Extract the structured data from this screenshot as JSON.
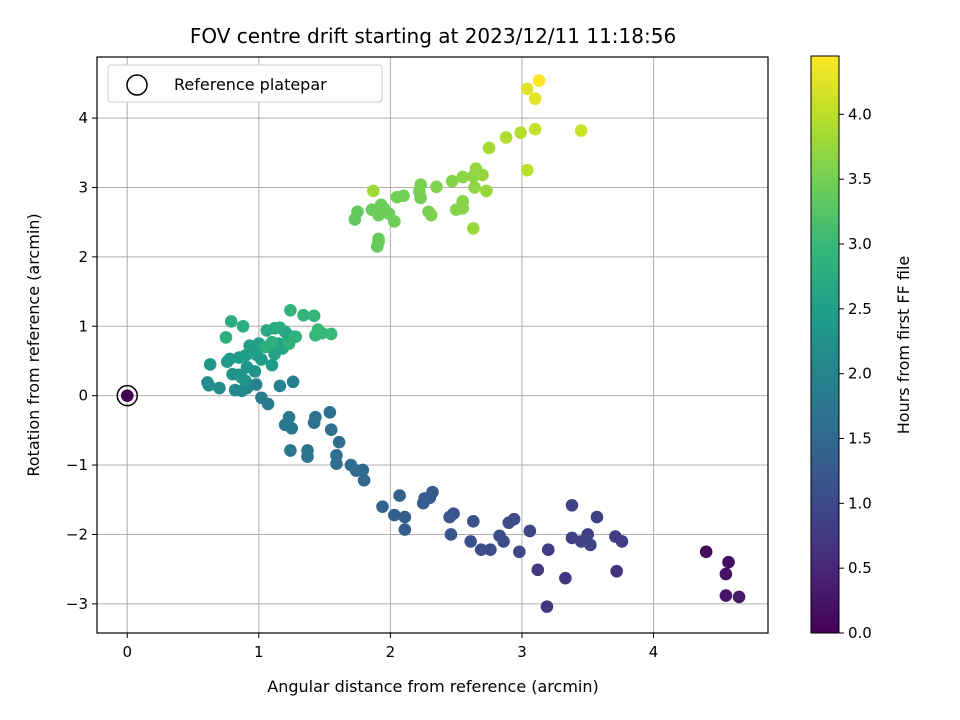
{
  "chart_data": {
    "type": "scatter",
    "title": "FOV centre drift starting at 2023/12/11 11:18:56",
    "xlabel": "Angular distance from reference (arcmin)",
    "ylabel": "Rotation from reference (arcmin)",
    "xlim": [
      -0.23,
      4.87
    ],
    "ylim": [
      -3.42,
      4.88
    ],
    "xticks": [
      0,
      1,
      2,
      3,
      4
    ],
    "yticks": [
      -3,
      -2,
      -1,
      0,
      1,
      2,
      3,
      4
    ],
    "grid": true,
    "legend": {
      "placement": "top-left",
      "entries": [
        "Reference platepar"
      ]
    },
    "reference_point": {
      "x": 0,
      "y": 0,
      "c": 0.0
    },
    "colorbar": {
      "label": "Hours from first FF file",
      "range": [
        0.0,
        4.45
      ],
      "ticks": [
        "0.0",
        "0.5",
        "1.0",
        "1.5",
        "2.0",
        "2.5",
        "3.0",
        "3.5",
        "4.0"
      ],
      "colormap": [
        "#440154",
        "#482878",
        "#3e4989",
        "#31688e",
        "#26828e",
        "#1f9e89",
        "#35b779",
        "#6ece58",
        "#b5de2b",
        "#fde725"
      ]
    },
    "points": [
      [
        4.4,
        -2.25,
        0.1
      ],
      [
        4.57,
        -2.4,
        0.15
      ],
      [
        4.55,
        -2.57,
        0.2
      ],
      [
        4.55,
        -2.88,
        0.25
      ],
      [
        4.65,
        -2.9,
        0.3
      ],
      [
        3.72,
        -2.53,
        0.65
      ],
      [
        3.33,
        -2.63,
        0.7
      ],
      [
        3.19,
        -3.04,
        0.72
      ],
      [
        3.12,
        -2.51,
        0.75
      ],
      [
        3.2,
        -2.22,
        0.78
      ],
      [
        3.76,
        -2.1,
        0.8
      ],
      [
        3.71,
        -2.03,
        0.82
      ],
      [
        3.57,
        -1.75,
        0.85
      ],
      [
        3.5,
        -2.0,
        0.86
      ],
      [
        3.45,
        -2.1,
        0.87
      ],
      [
        3.38,
        -2.05,
        0.88
      ],
      [
        3.38,
        -1.58,
        0.9
      ],
      [
        3.52,
        -2.15,
        0.92
      ],
      [
        3.06,
        -1.95,
        0.94
      ],
      [
        2.98,
        -2.25,
        0.96
      ],
      [
        2.94,
        -1.78,
        1.0
      ],
      [
        2.9,
        -1.83,
        1.02
      ],
      [
        2.86,
        -2.1,
        1.04
      ],
      [
        2.83,
        -2.02,
        1.06
      ],
      [
        2.76,
        -2.22,
        1.08
      ],
      [
        2.69,
        -2.22,
        1.1
      ],
      [
        2.63,
        -1.81,
        1.12
      ],
      [
        2.61,
        -2.1,
        1.14
      ],
      [
        2.48,
        -1.7,
        1.18
      ],
      [
        2.46,
        -2.0,
        1.2
      ],
      [
        2.45,
        -1.75,
        1.22
      ],
      [
        2.32,
        -1.39,
        1.24
      ],
      [
        2.3,
        -1.47,
        1.26
      ],
      [
        2.26,
        -1.48,
        1.28
      ],
      [
        2.25,
        -1.55,
        1.3
      ],
      [
        2.11,
        -1.93,
        1.32
      ],
      [
        2.11,
        -1.75,
        1.34
      ],
      [
        2.03,
        -1.72,
        1.36
      ],
      [
        2.07,
        -1.44,
        1.38
      ],
      [
        1.94,
        -1.6,
        1.4
      ],
      [
        1.8,
        -1.22,
        1.5
      ],
      [
        1.79,
        -1.07,
        1.52
      ],
      [
        1.74,
        -1.08,
        1.54
      ],
      [
        1.7,
        -1.0,
        1.56
      ],
      [
        1.59,
        -0.98,
        1.58
      ],
      [
        1.59,
        -0.86,
        1.6
      ],
      [
        1.61,
        -0.67,
        1.62
      ],
      [
        1.55,
        -0.49,
        1.64
      ],
      [
        1.54,
        -0.24,
        1.66
      ],
      [
        1.43,
        -0.31,
        1.68
      ],
      [
        1.42,
        -0.39,
        1.7
      ],
      [
        1.37,
        -0.88,
        1.72
      ],
      [
        1.37,
        -0.79,
        1.74
      ],
      [
        1.24,
        -0.79,
        1.76
      ],
      [
        1.25,
        -0.47,
        1.78
      ],
      [
        1.2,
        -0.42,
        1.8
      ],
      [
        1.23,
        -0.31,
        1.82
      ],
      [
        1.07,
        -0.12,
        1.84
      ],
      [
        1.02,
        -0.03,
        1.86
      ],
      [
        1.26,
        0.2,
        1.9
      ],
      [
        1.16,
        0.14,
        1.95
      ],
      [
        0.98,
        0.16,
        2.0
      ],
      [
        0.91,
        0.11,
        2.05
      ],
      [
        0.87,
        0.07,
        2.1
      ],
      [
        0.82,
        0.08,
        2.12
      ],
      [
        0.7,
        0.11,
        2.15
      ],
      [
        0.62,
        0.15,
        2.18
      ],
      [
        0.61,
        0.19,
        2.2
      ],
      [
        0.9,
        0.21,
        2.22
      ],
      [
        0.85,
        0.3,
        2.25
      ],
      [
        0.8,
        0.31,
        2.28
      ],
      [
        0.97,
        0.35,
        2.3
      ],
      [
        0.91,
        0.41,
        2.32
      ],
      [
        0.87,
        0.26,
        2.34
      ],
      [
        0.63,
        0.45,
        2.36
      ],
      [
        0.76,
        0.49,
        2.38
      ],
      [
        0.78,
        0.53,
        2.4
      ],
      [
        0.85,
        0.55,
        2.42
      ],
      [
        1.1,
        0.44,
        2.44
      ],
      [
        1.02,
        0.52,
        2.46
      ],
      [
        0.98,
        0.59,
        2.48
      ],
      [
        0.9,
        0.58,
        2.5
      ],
      [
        0.93,
        0.72,
        2.52
      ],
      [
        1.0,
        0.75,
        2.54
      ],
      [
        1.12,
        0.6,
        2.56
      ],
      [
        1.18,
        0.68,
        2.58
      ],
      [
        1.15,
        0.75,
        2.6
      ],
      [
        1.22,
        0.78,
        2.62
      ],
      [
        1.25,
        0.85,
        2.64
      ],
      [
        1.2,
        0.92,
        2.66
      ],
      [
        1.12,
        0.97,
        2.68
      ],
      [
        1.06,
        0.94,
        2.7
      ],
      [
        1.16,
        0.98,
        2.72
      ],
      [
        0.88,
        1.0,
        2.74
      ],
      [
        0.79,
        1.07,
        2.76
      ],
      [
        0.75,
        0.84,
        2.78
      ],
      [
        1.05,
        0.7,
        2.8
      ],
      [
        1.1,
        0.77,
        2.82
      ],
      [
        1.23,
        0.75,
        2.84
      ],
      [
        1.28,
        0.85,
        2.86
      ],
      [
        1.34,
        1.16,
        2.88
      ],
      [
        1.24,
        1.23,
        2.9
      ],
      [
        1.42,
        1.15,
        2.92
      ],
      [
        1.45,
        0.95,
        2.94
      ],
      [
        1.43,
        0.87,
        2.96
      ],
      [
        1.48,
        0.9,
        2.98
      ],
      [
        1.55,
        0.89,
        3.0
      ],
      [
        1.73,
        2.54,
        3.35
      ],
      [
        1.75,
        2.65,
        3.36
      ],
      [
        1.9,
        2.15,
        3.38
      ],
      [
        1.91,
        2.22,
        3.39
      ],
      [
        1.91,
        2.26,
        3.4
      ],
      [
        1.86,
        2.68,
        3.42
      ],
      [
        1.93,
        2.75,
        3.43
      ],
      [
        1.91,
        2.6,
        3.44
      ],
      [
        1.95,
        2.7,
        3.45
      ],
      [
        1.99,
        2.62,
        3.46
      ],
      [
        2.03,
        2.51,
        3.47
      ],
      [
        2.05,
        2.86,
        3.48
      ],
      [
        2.1,
        2.88,
        3.49
      ],
      [
        2.23,
        2.85,
        3.5
      ],
      [
        2.22,
        2.94,
        3.52
      ],
      [
        2.23,
        3.04,
        3.54
      ],
      [
        2.29,
        2.65,
        3.55
      ],
      [
        2.31,
        2.6,
        3.56
      ],
      [
        2.35,
        3.01,
        3.58
      ],
      [
        2.47,
        3.09,
        3.6
      ],
      [
        2.5,
        2.68,
        3.62
      ],
      [
        2.55,
        2.7,
        3.63
      ],
      [
        2.55,
        2.8,
        3.64
      ],
      [
        2.55,
        3.15,
        3.66
      ],
      [
        2.63,
        3.16,
        3.68
      ],
      [
        2.64,
        3.0,
        3.7
      ],
      [
        2.65,
        3.27,
        3.72
      ],
      [
        2.7,
        3.18,
        3.74
      ],
      [
        2.73,
        2.95,
        3.76
      ],
      [
        2.63,
        2.41,
        3.78
      ],
      [
        1.87,
        2.95,
        3.8
      ],
      [
        2.75,
        3.57,
        3.85
      ],
      [
        2.88,
        3.72,
        3.9
      ],
      [
        2.99,
        3.79,
        3.95
      ],
      [
        3.04,
        3.25,
        4.0
      ],
      [
        3.1,
        3.84,
        4.05
      ],
      [
        3.45,
        3.82,
        4.1
      ],
      [
        3.04,
        4.42,
        4.25
      ],
      [
        3.1,
        4.28,
        4.3
      ],
      [
        3.13,
        4.54,
        4.45
      ]
    ]
  }
}
